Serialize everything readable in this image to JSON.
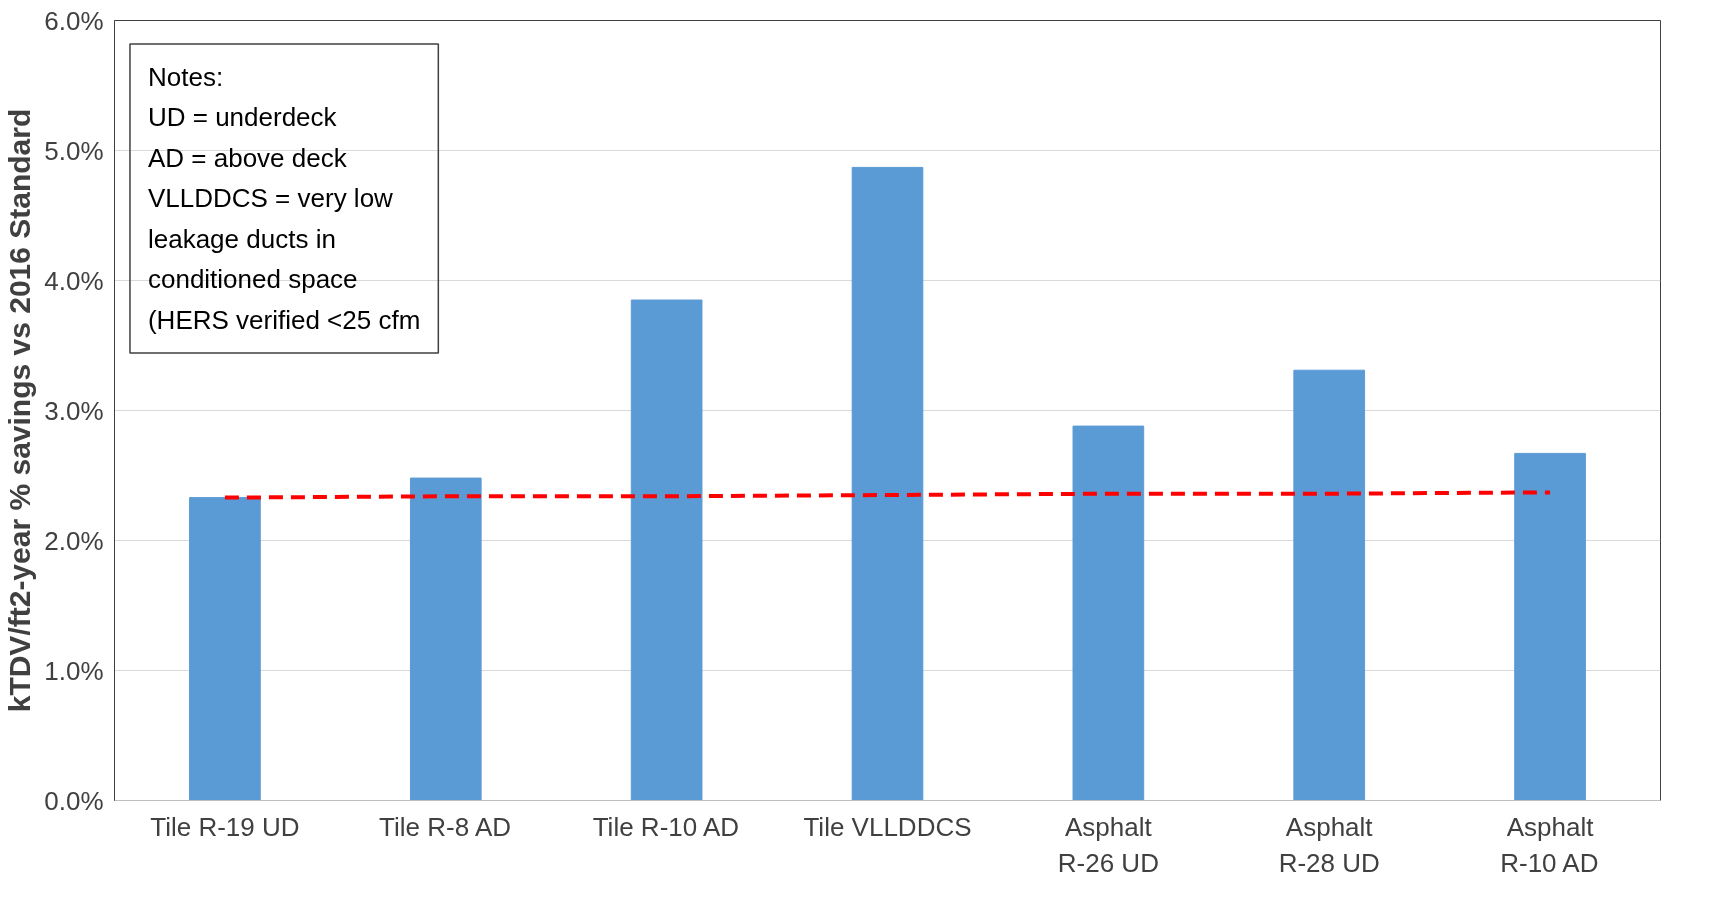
{
  "chart_data": {
    "type": "bar",
    "ylabel": "kTDV/ft2-year % savings vs 2016 Standard",
    "categories": [
      "Tile R-19 UD",
      "Tile R-8 AD",
      "Tile R-10 AD",
      "Tile VLLDDCS",
      "Asphalt R-26 UD",
      "Asphalt R-28 UD",
      "Asphalt R-10 AD"
    ],
    "series": [
      {
        "color": "#5b9bd5",
        "values": [
          2.33,
          2.48,
          3.85,
          4.87,
          2.88,
          3.31,
          2.67
        ]
      },
      {
        "type": "line",
        "color": "#ff0000",
        "line_style": "dashed",
        "values": [
          2.33,
          2.34,
          2.34,
          2.35,
          2.36,
          2.36,
          2.37
        ]
      }
    ],
    "ylim": [
      0,
      6
    ],
    "yticks": [
      {
        "value": 0,
        "label": "0.0%"
      },
      {
        "value": 1,
        "label": "1.0%"
      },
      {
        "value": 2,
        "label": "2.0%"
      },
      {
        "value": 3,
        "label": "3.0%"
      },
      {
        "value": 4,
        "label": "4.0%"
      },
      {
        "value": 5,
        "label": "5.0%"
      },
      {
        "value": 6,
        "label": "6.0%"
      }
    ],
    "grid": "y",
    "annotations": [
      "Notes:",
      "UD = underdeck",
      "AD = above deck",
      "VLLDDCS = very low",
      "leakage ducts in",
      "conditioned space",
      "(HERS verified <25 cfm"
    ]
  }
}
